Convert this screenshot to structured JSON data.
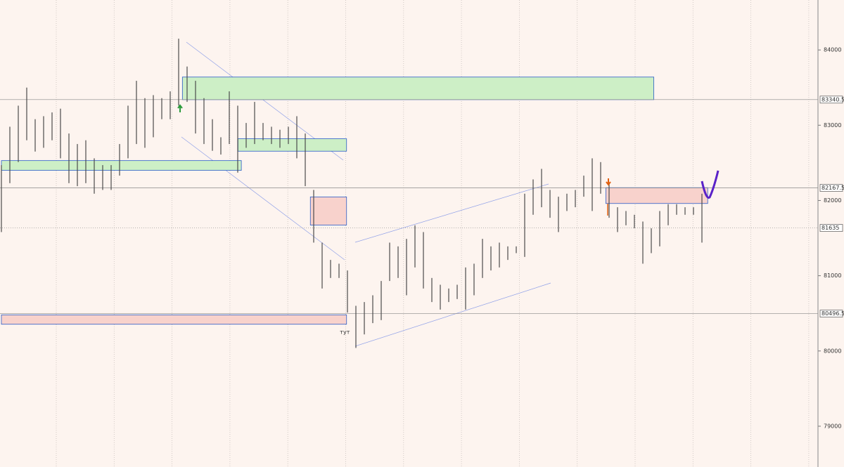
{
  "chart_data": {
    "type": "ohlc",
    "high": [
      82470,
      82980,
      83260,
      83500,
      83080,
      83120,
      83170,
      83220,
      82890,
      82750,
      82800,
      82560,
      82470,
      82470,
      82750,
      83260,
      83590,
      83360,
      83400,
      83360,
      83450,
      84150,
      83780,
      83590,
      83360,
      83080,
      82840,
      83450,
      83260,
      83030,
      83310,
      83030,
      82980,
      82940,
      82980,
      83120,
      82890,
      82140,
      81440,
      81210,
      81160,
      81070,
      80600,
      80650,
      80740,
      80930,
      81440,
      81390,
      81490,
      81670,
      81580,
      80970,
      80880,
      80830,
      80880,
      81110,
      81160,
      81490,
      81390,
      81440,
      81390,
      81390,
      82090,
      82280,
      82420,
      82140,
      82050,
      82090,
      82140,
      82330,
      82560,
      82510,
      82230,
      81910,
      81860,
      81810,
      81720,
      81630,
      81860,
      81950,
      81950,
      81910,
      81910,
      82090
    ],
    "low": [
      81580,
      82230,
      82510,
      82800,
      82650,
      82700,
      82800,
      82560,
      82230,
      82190,
      82230,
      82090,
      82140,
      82140,
      82330,
      82560,
      82750,
      82700,
      82840,
      83080,
      83080,
      83260,
      83310,
      82890,
      82750,
      82660,
      82610,
      82750,
      82370,
      82700,
      82750,
      82800,
      82750,
      82700,
      82750,
      82560,
      82190,
      81440,
      80830,
      80970,
      80970,
      80510,
      80040,
      80220,
      80370,
      80410,
      80930,
      80970,
      80740,
      81110,
      80830,
      80650,
      80550,
      80650,
      80690,
      80550,
      80740,
      80970,
      81070,
      81110,
      81210,
      81300,
      81250,
      81810,
      81910,
      81770,
      81580,
      81860,
      81910,
      82050,
      81860,
      82090,
      81770,
      81580,
      81670,
      81630,
      81160,
      81300,
      81390,
      81670,
      81810,
      81810,
      81810,
      81440
    ],
    "color": "#4a4a4a",
    "xlim": [
      0,
      97
    ],
    "ylim": [
      78458,
      84664
    ],
    "yticks": [
      84000,
      83000,
      82000,
      81000,
      80000,
      79000
    ],
    "zones": [
      {
        "start": 21.5,
        "end": 77.5,
        "top": 83640,
        "bottom": 83340,
        "color": "#cdefc6"
      },
      {
        "start": 28.1,
        "end": 41,
        "top": 82820,
        "bottom": 82655,
        "color": "#cdefc6"
      },
      {
        "start": 0,
        "end": 28.5,
        "top": 82530,
        "bottom": 82400,
        "color": "#cdefc6"
      },
      {
        "start": 36.7,
        "end": 41,
        "top": 82047,
        "bottom": 81673,
        "color": "#f8d2cc"
      },
      {
        "start": 71.8,
        "end": 83.9,
        "top": 82170,
        "bottom": 81960,
        "color": "#f8d2cc"
      },
      {
        "start": 0,
        "end": 41,
        "top": 80480,
        "bottom": 80355,
        "color": "#f8d2cc"
      }
    ],
    "levels": [
      {
        "value": 83340.5,
        "style": "solid"
      },
      {
        "value": 82167.5,
        "style": "solid"
      },
      {
        "value": 81635,
        "style": "dotted"
      },
      {
        "value": 80496.5,
        "style": "solid"
      }
    ],
    "annotation": {
      "text": "тут",
      "x": 40.8,
      "y": 80250
    }
  }
}
